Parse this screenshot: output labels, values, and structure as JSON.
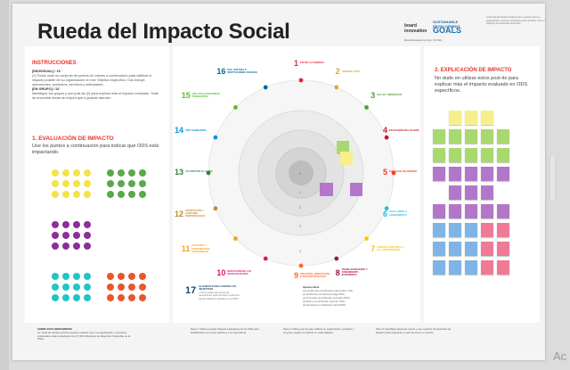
{
  "board": {
    "title": "Rueda del Impacto Social",
    "logo_board": "board\ninnovation",
    "logo_sdg": "SUSTAINABLE\nDEVELOPMENT",
    "logo_goals": "GOALS",
    "logo_caption": "Boardofinnovation.com/sdg · UN SDG",
    "intro_text": "La Rueda del Impacto Social ayuda a evaluar cómo su organización o proyecto individual puede contribuir a los 17 Objetivos de Desarrollo Sostenible."
  },
  "instructions": {
    "heading": "INSTRUCCIONES",
    "individual_label": "[INDIVIDUAL] / 15 '",
    "individual_text": "(1) Todos usan un conjunto de puntos de colores a continuación para calificar el impacto posible de su organización en ese Objetivo específico. Dos incluye operaciones, productos, servicios y actividades.",
    "group_label": "[EN GRUPO] / 15 '",
    "group_text": "Identifique los grupos y use post-its (2) para explicar más el impacto evaluado. Trate de encontrar áreas de mejora que a guiarán atender."
  },
  "evaluation": {
    "heading": "1. EVALUACIÓN DE IMPACTO",
    "text": "Use los puntos a continuación para indicar qué ODS está impactando.",
    "dot_colors": [
      "#f4e24a",
      "#5aa84c",
      "#8e2d9a",
      "#22c4c8",
      "#e9562b"
    ]
  },
  "goals": [
    {
      "num": "1",
      "label": "FIN DE LA POBREZA",
      "color": "#e5243b"
    },
    {
      "num": "2",
      "label": "HAMBRE CERO",
      "color": "#dda63a"
    },
    {
      "num": "3",
      "label": "SALUD Y BIENESTAR",
      "color": "#4c9f38"
    },
    {
      "num": "4",
      "label": "EDUCACIÓN DE CALIDAD",
      "color": "#c5192d"
    },
    {
      "num": "5",
      "label": "IGUALDAD DE GÉNERO",
      "color": "#ff3a21"
    },
    {
      "num": "6",
      "label": "AGUA LIMPIA Y SANEAMIENTO",
      "color": "#26bde2"
    },
    {
      "num": "7",
      "label": "ENERGÍA ASEQUIBLE Y NO CONTAMINANTE",
      "color": "#fcc30b"
    },
    {
      "num": "8",
      "label": "TRABAJO DECENTE Y CRECIMIENTO ECONÓMICO",
      "color": "#a21942"
    },
    {
      "num": "9",
      "label": "INDUSTRIA, INNOVACIÓN E INFRAESTRUCTURA",
      "color": "#fd6925"
    },
    {
      "num": "10",
      "label": "REDUCCIÓN DE LAS DESIGUALDADES",
      "color": "#dd1367"
    },
    {
      "num": "11",
      "label": "CIUDADES Y COMUNIDADES SOSTENIBLES",
      "color": "#fd9d24"
    },
    {
      "num": "12",
      "label": "PRODUCCIÓN Y CONSUMO RESPONSABLES",
      "color": "#bf8b2e"
    },
    {
      "num": "13",
      "label": "ACCIÓN POR EL CLIMA",
      "color": "#3f7e44"
    },
    {
      "num": "14",
      "label": "VIDA SUBMARINA",
      "color": "#0a97d9"
    },
    {
      "num": "15",
      "label": "VIDA DE ECOSISTEMAS TERRESTRES",
      "color": "#56c02b"
    },
    {
      "num": "16",
      "label": "PAZ, JUSTICIA E INSTITUCIONES SÓLIDAS",
      "color": "#00689d"
    }
  ],
  "goal17": {
    "num": "17",
    "label": "ALIANZAS PARA LOGRAR LOS OBJETIVOS",
    "sub": "¿Cómo puede aprovechar las asociaciones para contribuir a todos los demás Objetivos ubicados en el ODS?",
    "color": "#19486a"
  },
  "legend": {
    "heading": "Impacto Nivel",
    "items": [
      "(0) Inexistente (contribución para nada o 0%)",
      "(1) Deficiente (contribución baja 25%)",
      "(2) Promedio (contribución promedio 50%)",
      "(3) Bueno (contribución superior 75%)",
      "(4) Excelente (contribución total 100%)"
    ]
  },
  "ring_labels": [
    "0",
    "1",
    "2",
    "3",
    "4"
  ],
  "explanation": {
    "heading": "2. EXPLICACIÓN DE IMPACTO",
    "text": "No dudo en utilizar estos post-its para explicar más el impacto evaluado en ODS específicos.",
    "rows": [
      [
        "#f6f08a",
        "#f6f08a",
        "#f6f08a"
      ],
      [
        "#a8d86e",
        "#a8d86e",
        "#a8d86e",
        "#a8d86e",
        "#a8d86e"
      ],
      [
        "#a8d86e",
        "#a8d86e",
        "#a8d86e",
        "#a8d86e",
        "#a8d86e"
      ],
      [
        "#b277c8",
        "#b277c8",
        "#b277c8",
        "#b277c8",
        "#b277c8"
      ],
      [
        "#b277c8",
        "#b277c8",
        "#b277c8"
      ],
      [
        "#b277c8",
        "#b277c8",
        "#b277c8",
        "#b277c8",
        "#b277c8"
      ],
      [
        "#7fb4e6",
        "#7fb4e6",
        "#7fb4e6",
        "#f07a96",
        "#f07a96"
      ],
      [
        "#7fb4e6",
        "#7fb4e6",
        "#7fb4e6",
        "#f07a96",
        "#f07a96"
      ],
      [
        "#7fb4e6",
        "#7fb4e6",
        "#7fb4e6",
        "#f07a96",
        "#f07a96"
      ]
    ]
  },
  "footer": {
    "about_heading": "SOBRE ESTA HERRAMIENTA",
    "about_text": "La rueda de impacto social le ayuda a evaluar cómo su organización o proyectos individuales están impactando los 17 ODS (Objetivos de Desarrollo Sostenible de la ONU).",
    "step1": "Paso 1: Utilice nuestras Tarjetas explicativas de los ODS para familiarizarse con estos objetivos y su importancia.",
    "step2": "Paso 2: Utilice post-its para calificar su organización, producto o proyecto, según su impacto en cada Objetivo.",
    "step3": "Paso 3: Identifique áreas de mejora y use nuestras herramientas de ideación para inspirarse y crear de hacer un cambio."
  },
  "overlay_text": "Ac"
}
